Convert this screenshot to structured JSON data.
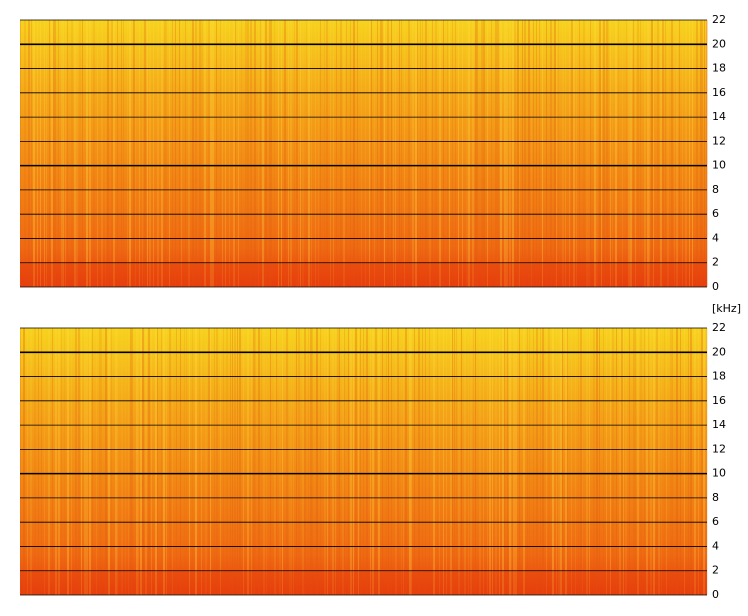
{
  "chart_data": [
    {
      "type": "spectrogram",
      "ylim": [
        0,
        22
      ],
      "yticks": [
        0,
        2,
        4,
        6,
        8,
        10,
        12,
        14,
        16,
        18,
        20,
        22
      ],
      "grid": true
    },
    {
      "type": "spectrogram",
      "y_label": "[kHz]",
      "ylim": [
        0,
        22
      ],
      "yticks": [
        0,
        2,
        4,
        6,
        8,
        10,
        12,
        14,
        16,
        18,
        20,
        22
      ],
      "grid": true
    }
  ]
}
